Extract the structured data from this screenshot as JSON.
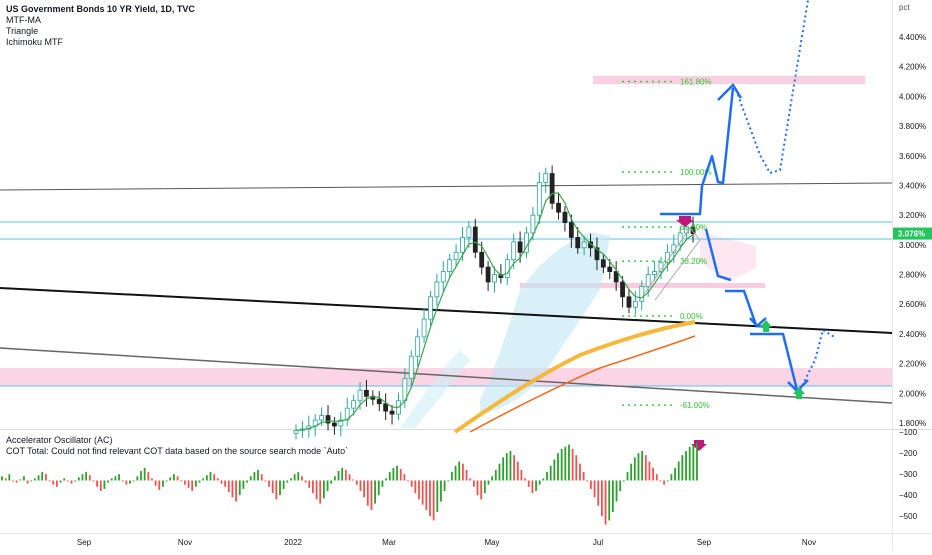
{
  "legend": {
    "title": "US Government Bonds 10 YR Yield, 1D, TVC",
    "ind1": "MTF-MA",
    "ind2": "Triangle",
    "ind3": "Ichimoku MTF"
  },
  "lower_legend": {
    "ind1": "Accelerator Oscillator (AC)",
    "ind2": "COT Total: Could not find relevant COT data based on the source search mode `Auto`"
  },
  "colors": {
    "price_up": "#26a69a",
    "price_down": "#222222",
    "accent_blue": "#1e6ff0",
    "pink_zone": "#f9c7dc",
    "ma_thick": "#f5b83d",
    "ma_thin": "#f06a1f",
    "fib_green": "#2ec52e",
    "hist_up": "#2ca02c",
    "hist_down": "#ef5350",
    "last_price": "#22c55e",
    "marker_magenta": "#c0177b"
  },
  "chart_data": [
    {
      "type": "line",
      "title": "US Government Bonds 10 YR Yield, 1D, TVC",
      "y_unit": "pct",
      "ylim": [
        1.75,
        4.75
      ],
      "y_ticks": [
        "4.400%",
        "4.200%",
        "4.000%",
        "3.800%",
        "3.600%",
        "3.400%",
        "3.200%",
        "3.000%",
        "2.800%",
        "2.600%",
        "2.400%",
        "2.200%",
        "2.000%",
        "1.800%"
      ],
      "y_tick_values": [
        4.4,
        4.2,
        4.0,
        3.8,
        3.6,
        3.4,
        3.2,
        3.0,
        2.8,
        2.6,
        2.4,
        2.2,
        2.0,
        1.8
      ],
      "x_ticks": [
        "Sep",
        "Nov",
        "2022",
        "Mar",
        "May",
        "Jul",
        "Sep",
        "Nov"
      ],
      "last_price_label": "3.076%",
      "last_price": 3.076,
      "fib_levels": [
        {
          "label": "161.80%",
          "value": 4.1
        },
        {
          "label": "100.00%",
          "value": 3.49
        },
        {
          "label": "61.80%",
          "value": 3.12
        },
        {
          "label": "38.20%",
          "value": 2.89
        },
        {
          "label": "0.00%",
          "value": 2.52
        },
        {
          "label": "-61.00%",
          "value": 1.92
        }
      ],
      "close_series": [
        1.75,
        1.76,
        1.78,
        1.82,
        1.85,
        1.8,
        1.78,
        1.82,
        1.9,
        1.95,
        2.02,
        1.98,
        1.96,
        1.93,
        1.88,
        1.86,
        1.95,
        2.1,
        2.25,
        2.38,
        2.5,
        2.65,
        2.75,
        2.82,
        2.9,
        2.95,
        3.05,
        3.12,
        2.95,
        2.85,
        2.75,
        2.8,
        2.78,
        2.9,
        3.02,
        2.95,
        3.08,
        3.2,
        3.42,
        3.48,
        3.28,
        3.22,
        3.15,
        3.05,
        2.98,
        3.02,
        2.98,
        2.9,
        2.85,
        2.82,
        2.75,
        2.65,
        2.58,
        2.62,
        2.72,
        2.8,
        2.82,
        2.88,
        2.95,
        3.0,
        3.08,
        3.12,
        3.076
      ]
    },
    {
      "type": "bar",
      "title": "Accelerator Oscillator (AC)",
      "y_ticks": [
        "−100",
        "−200",
        "−300",
        "−400",
        "−500"
      ],
      "y_tick_values": [
        -100,
        -200,
        -300,
        -400,
        -500
      ],
      "ylim": [
        -575,
        -90
      ],
      "baseline": -330,
      "values": [
        -310,
        -320,
        -300,
        -335,
        -340,
        -325,
        -310,
        -345,
        -330,
        -320,
        -305,
        -290,
        -300,
        -330,
        -350,
        -360,
        -340,
        -320,
        -330,
        -345,
        -335,
        -315,
        -300,
        -290,
        -305,
        -330,
        -360,
        -380,
        -370,
        -340,
        -320,
        -310,
        -300,
        -330,
        -350,
        -345,
        -330,
        -310,
        -285,
        -270,
        -290,
        -320,
        -355,
        -375,
        -360,
        -330,
        -315,
        -300,
        -310,
        -330,
        -350,
        -365,
        -380,
        -360,
        -340,
        -320,
        -305,
        -290,
        -300,
        -320,
        -345,
        -360,
        -385,
        -410,
        -430,
        -400,
        -370,
        -340,
        -310,
        -290,
        -280,
        -300,
        -330,
        -360,
        -390,
        -420,
        -400,
        -370,
        -340,
        -320,
        -300,
        -290,
        -310,
        -340,
        -365,
        -390,
        -420,
        -440,
        -415,
        -380,
        -345,
        -310,
        -285,
        -270,
        -280,
        -300,
        -325,
        -350,
        -380,
        -410,
        -450,
        -470,
        -440,
        -400,
        -360,
        -320,
        -290,
        -270,
        -260,
        -275,
        -300,
        -330,
        -360,
        -390,
        -420,
        -445,
        -470,
        -500,
        -520,
        -480,
        -430,
        -380,
        -330,
        -290,
        -260,
        -240,
        -250,
        -280,
        -320,
        -360,
        -400,
        -420,
        -390,
        -350,
        -310,
        -280,
        -250,
        -220,
        -200,
        -190,
        -210,
        -240,
        -280,
        -320,
        -360,
        -390,
        -380,
        -350,
        -320,
        -290,
        -260,
        -230,
        -200,
        -180,
        -170,
        -160,
        -180,
        -210,
        -250,
        -290,
        -330,
        -370,
        -410,
        -450,
        -500,
        -540,
        -520,
        -480,
        -430,
        -380,
        -330,
        -290,
        -250,
        -220,
        -200,
        -190,
        -210,
        -240,
        -270,
        -300,
        -330,
        -350,
        -330,
        -300,
        -270,
        -240,
        -210,
        -190,
        -170,
        -160,
        -150
      ]
    }
  ]
}
